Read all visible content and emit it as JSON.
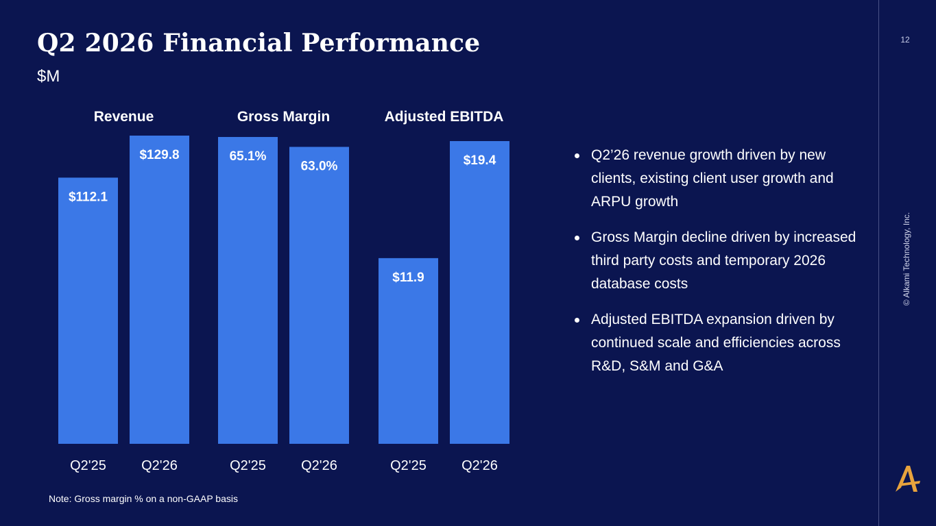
{
  "slide": {
    "title": "Q2 2026 Financial Performance",
    "subtitle": "$M",
    "page_number": "12",
    "copyright": "© Alkami Technology, Inc.",
    "note": "Note: Gross margin % on a non-GAAP basis",
    "logo_icon": "alkami-a-logo-icon",
    "colors": {
      "background": "#0b1550",
      "bar": "#3b78e7",
      "logo": "#e8a33d"
    }
  },
  "bullets": [
    {
      "text": "Q2’26 revenue growth driven by new clients, existing client user growth and ARPU growth"
    },
    {
      "text": "Gross Margin decline driven by increased third party costs and temporary 2026 database costs"
    },
    {
      "text": "Adjusted EBITDA expansion driven by continued scale and efficiencies across R&D, S&M and G&A"
    }
  ],
  "chart_data": [
    {
      "type": "bar",
      "title": "Revenue",
      "categories": [
        "Q2'25",
        "Q2'26"
      ],
      "values": [
        112.1,
        129.8
      ],
      "labels": [
        "$112.1",
        "$129.8"
      ]
    },
    {
      "type": "bar",
      "title": "Gross Margin",
      "categories": [
        "Q2'25",
        "Q2'26"
      ],
      "values": [
        65.1,
        63.0
      ],
      "labels": [
        "65.1%",
        "63.0%"
      ]
    },
    {
      "type": "bar",
      "title": "Adjusted EBITDA",
      "categories": [
        "Q2'25",
        "Q2'26"
      ],
      "values": [
        11.9,
        19.4
      ],
      "labels": [
        "$11.9",
        "$19.4"
      ]
    }
  ]
}
